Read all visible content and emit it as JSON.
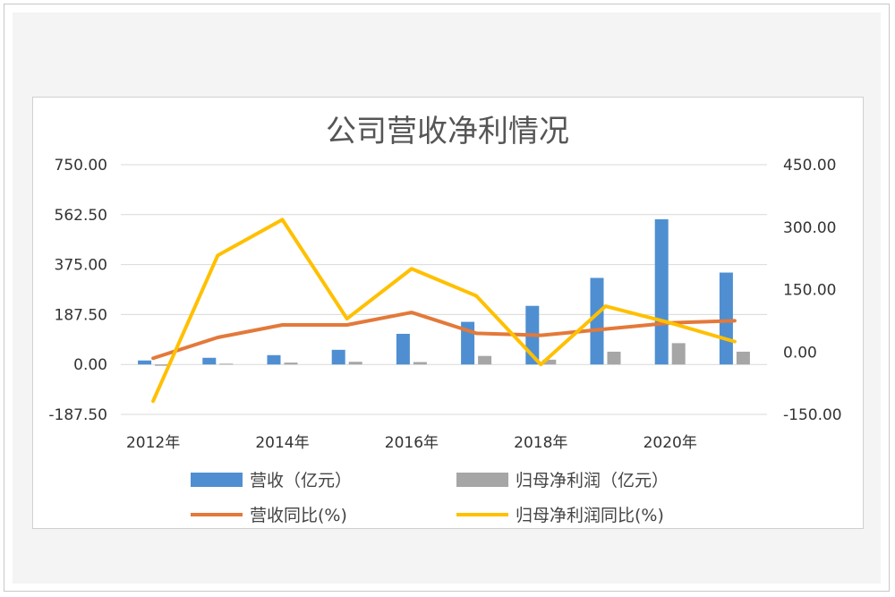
{
  "chart_data": {
    "type": "bar",
    "title": "公司营收净利情况",
    "x": [
      2012,
      2013,
      2014,
      2015,
      2016,
      2017,
      2018,
      2019,
      2020,
      2021
    ],
    "x_tick_labels": [
      "2012年",
      "2014年",
      "2016年",
      "2018年",
      "2020年"
    ],
    "y_left": {
      "range": [
        -187.5,
        750
      ],
      "tick_labels": [
        "750.00",
        "562.50",
        "375.00",
        "187.50",
        "0.00",
        "-187.50"
      ]
    },
    "y_right": {
      "range": [
        -150,
        450
      ],
      "tick_labels": [
        "450.00",
        "300.00",
        "150.00",
        "0.00",
        "-150.00"
      ]
    },
    "grid": true,
    "legend_position": "bottom",
    "series": [
      {
        "name": "营收（亿元）",
        "type": "bar",
        "axis": "left",
        "color": "#4f8fd1",
        "values": [
          15,
          25,
          35,
          55,
          115,
          160,
          220,
          325,
          545,
          345
        ]
      },
      {
        "name": "归母净利润（亿元）",
        "type": "bar",
        "axis": "left",
        "color": "#a6a6a6",
        "values": [
          -5,
          3,
          7,
          10,
          9,
          32,
          18,
          48,
          80,
          48
        ]
      },
      {
        "name": "营收同比(%)",
        "type": "line",
        "axis": "right",
        "color": "#e3793a",
        "values": [
          -15,
          35,
          65,
          65,
          95,
          45,
          40,
          55,
          70,
          75
        ]
      },
      {
        "name": "归母净利润同比(%)",
        "type": "line",
        "axis": "right",
        "color": "#ffc000",
        "values": [
          -118,
          232,
          318,
          80,
          200,
          135,
          -30,
          110,
          70,
          25
        ]
      }
    ]
  }
}
